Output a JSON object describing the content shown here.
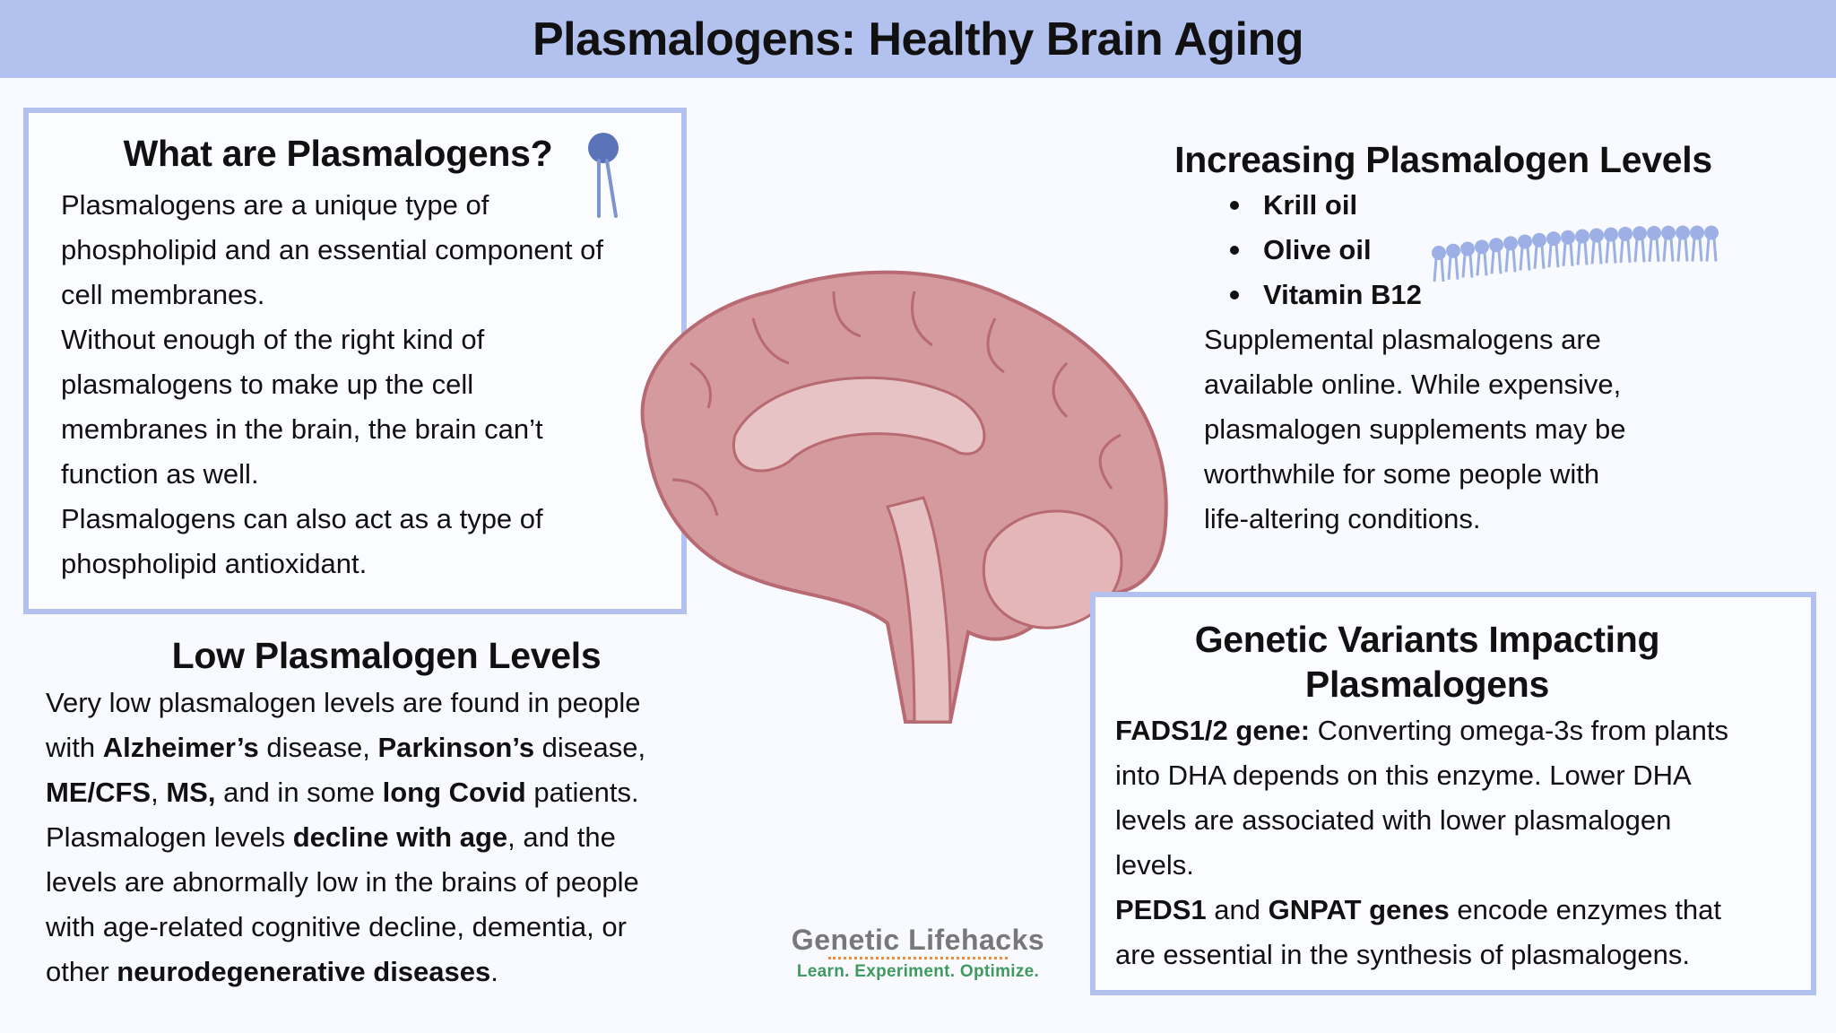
{
  "title": "Plasmalogens: Healthy Brain Aging",
  "what": {
    "heading": "What are Plasmalogens?",
    "lines": [
      "Plasmalogens are a unique type of",
      "phospholipid and an essential component of",
      "cell membranes.",
      "Without enough of the right kind of",
      "plasmalogens to make up the cell",
      "membranes in the brain, the brain can’t",
      "function as well.",
      "Plasmalogens can also act as a type of",
      "phospholipid antioxidant."
    ]
  },
  "low": {
    "heading": "Low Plasmalogen Levels",
    "t1": "Very low plasmalogen levels are found in people",
    "t2": "with ",
    "b1": "Alzheimer’s",
    "t3": " disease, ",
    "b2": "Parkinson’s",
    "t4": " disease,",
    "b3": "ME/CFS",
    "t5": ", ",
    "b4": "MS,",
    "t6": " and in some ",
    "b5": "long Covid",
    "t7": " patients.",
    "t8": "Plasmalogen levels ",
    "b6": "decline with age",
    "t9": ", and the",
    "t10": "levels are abnormally low in the brains of people",
    "t11": "with age-related cognitive decline, dementia, or",
    "t12": "other ",
    "b7": "neurodegenerative diseases",
    "t13": "."
  },
  "increasing": {
    "heading": "Increasing Plasmalogen Levels",
    "bullets": [
      "Krill oil",
      "Olive oil",
      "Vitamin B12"
    ],
    "lines": [
      "Supplemental plasmalogens are",
      "available online. While expensive,",
      "plasmalogen supplements may be",
      "worthwhile for some people with",
      "life-altering conditions."
    ]
  },
  "genetic": {
    "heading1": "Genetic Variants Impacting",
    "heading2": "Plasmalogens",
    "b1": "FADS1/2 gene:",
    "t1": " Converting omega-3s from plants",
    "t2": "into DHA depends on this enzyme. Lower DHA",
    "t3": "levels are associated with lower plasmalogen",
    "t4": "levels.",
    "b2": "PEDS1",
    "t5": " and ",
    "b3": "GNPAT genes",
    "t6": " encode enzymes that",
    "t7": "are essential in the synthesis of plasmalogens."
  },
  "logo": {
    "name": "Genetic Lifehacks",
    "tagline": "Learn. Experiment. Optimize."
  },
  "colors": {
    "header": "#b3c1ee",
    "border": "#b3c1ee",
    "lipid": "#5b73b8",
    "brain": "#d49a9e"
  }
}
